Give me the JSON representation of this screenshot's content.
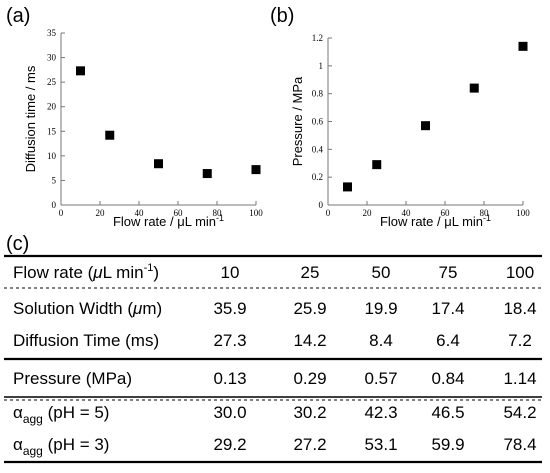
{
  "panels": {
    "a": "(a)",
    "b": "(b)",
    "c": "(c)"
  },
  "chart_data": [
    {
      "type": "scatter",
      "panel": "(a)",
      "xlabel": "Flow rate / μL min",
      "x_unit_superscript": "-1",
      "ylabel": "Diffusion time / ms",
      "xlim": [
        0,
        100
      ],
      "ylim": [
        0,
        35
      ],
      "xticks": [
        0,
        20,
        40,
        60,
        80,
        100
      ],
      "yticks": [
        0,
        5,
        10,
        15,
        20,
        25,
        30,
        35
      ],
      "grid": false,
      "marker": "square",
      "series": [
        {
          "x": [
            10,
            25,
            50,
            75,
            100
          ],
          "y": [
            27.3,
            14.2,
            8.4,
            6.4,
            7.2
          ]
        }
      ]
    },
    {
      "type": "scatter",
      "panel": "(b)",
      "xlabel": "Flow rate / μL min",
      "x_unit_superscript": "-1",
      "ylabel": "Pressure / MPa",
      "xlim": [
        0,
        100
      ],
      "ylim": [
        0,
        1.2
      ],
      "xticks": [
        0,
        20,
        40,
        60,
        80,
        100
      ],
      "yticks": [
        0,
        0.2,
        0.4,
        0.6,
        0.8,
        1,
        1.2
      ],
      "ytick_labels": [
        "0",
        "0.2",
        "0.4",
        "0.6",
        "0.8",
        "1",
        "1.2"
      ],
      "grid": false,
      "marker": "square",
      "series": [
        {
          "x": [
            10,
            25,
            50,
            75,
            100
          ],
          "y": [
            0.13,
            0.29,
            0.57,
            0.84,
            1.14
          ]
        }
      ]
    },
    {
      "type": "table",
      "panel": "(c)",
      "header": {
        "label_main": "Flow rate (",
        "label_mu": "μ",
        "label_rest": "L min",
        "label_sup": "-1",
        "label_close": ")",
        "values": [
          "10",
          "25",
          "50",
          "75",
          "100"
        ]
      },
      "groups": [
        [
          {
            "main": "Solution Width (",
            "mu": "μ",
            "rest": "m)",
            "values": [
              "35.9",
              "25.9",
              "19.9",
              "17.4",
              "18.4"
            ]
          },
          {
            "main": "Diffusion Time (ms)",
            "values": [
              "27.3",
              "14.2",
              "8.4",
              "6.4",
              "7.2"
            ]
          }
        ],
        [
          {
            "main": "Pressure (MPa)",
            "values": [
              "0.13",
              "0.29",
              "0.57",
              "0.84",
              "1.14"
            ]
          }
        ],
        [
          {
            "alpha": "α",
            "sub": "agg",
            "rest": " (pH = 5)",
            "values": [
              "30.0",
              "30.2",
              "42.3",
              "46.5",
              "54.2"
            ]
          },
          {
            "alpha": "α",
            "sub": "agg",
            "rest": " (pH = 3)",
            "values": [
              "29.2",
              "27.2",
              "53.1",
              "59.9",
              "78.4"
            ]
          }
        ]
      ]
    }
  ]
}
